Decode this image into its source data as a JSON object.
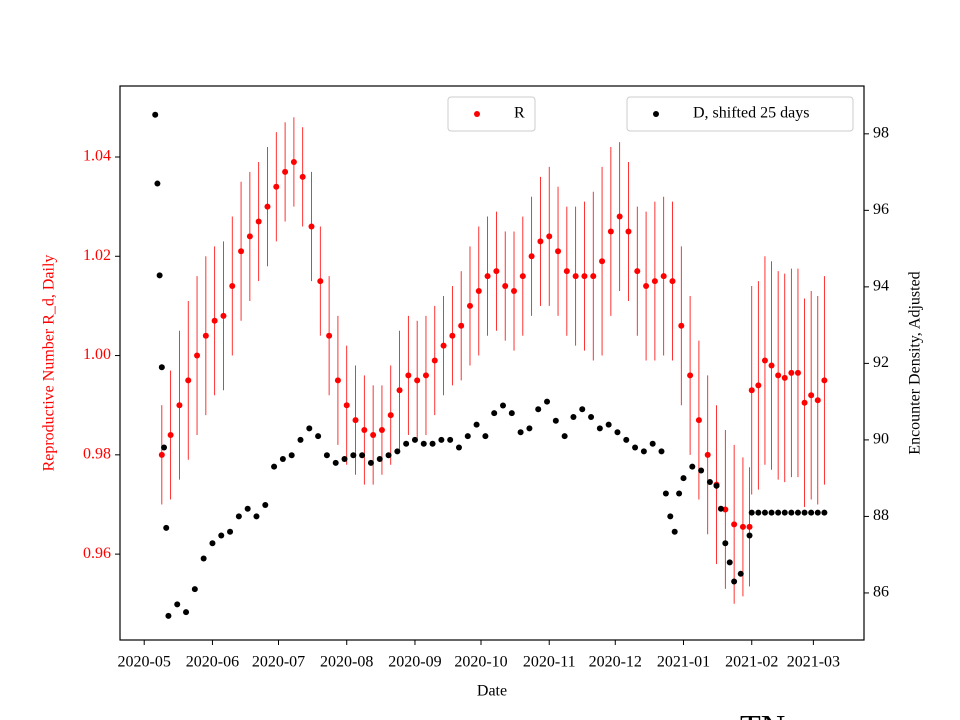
{
  "chart_data": {
    "type": "scatter",
    "xlabel": "Date",
    "ylabel": "Reproductive Number R_d, Daily",
    "y2label": "Encounter Density, Adjusted",
    "annotation": "TN",
    "xlim": [
      "2020-04-20",
      "2021-03-24"
    ],
    "xticks": [
      {
        "value": "2020-05-01",
        "label": "2020-05"
      },
      {
        "value": "2020-06-01",
        "label": "2020-06"
      },
      {
        "value": "2020-07-01",
        "label": "2020-07"
      },
      {
        "value": "2020-08-01",
        "label": "2020-08"
      },
      {
        "value": "2020-09-01",
        "label": "2020-09"
      },
      {
        "value": "2020-10-01",
        "label": "2020-10"
      },
      {
        "value": "2020-11-01",
        "label": "2020-11"
      },
      {
        "value": "2020-12-01",
        "label": "2020-12"
      },
      {
        "value": "2021-01-01",
        "label": "2021-01"
      },
      {
        "value": "2021-02-01",
        "label": "2021-02"
      },
      {
        "value": "2021-03-01",
        "label": "2021-03"
      }
    ],
    "ylim": [
      0.9427,
      1.0543
    ],
    "yticks": [
      {
        "value": 0.96,
        "label": "0.96"
      },
      {
        "value": 0.98,
        "label": "0.98"
      },
      {
        "value": 1.0,
        "label": "1.00"
      },
      {
        "value": 1.02,
        "label": "1.02"
      },
      {
        "value": 1.04,
        "label": "1.04"
      }
    ],
    "y2lim": [
      84.77,
      99.25
    ],
    "y2ticks": [
      86,
      88,
      90,
      92,
      94,
      96,
      98
    ],
    "series": [
      {
        "name": "R",
        "color": "#ff0000",
        "axis": "y",
        "legend": "upper center",
        "x": [
          "2020-05-09",
          "2020-05-13",
          "2020-05-17",
          "2020-05-21",
          "2020-05-25",
          "2020-05-29",
          "2020-06-02",
          "2020-06-06",
          "2020-06-10",
          "2020-06-14",
          "2020-06-18",
          "2020-06-22",
          "2020-06-26",
          "2020-06-30",
          "2020-07-04",
          "2020-07-08",
          "2020-07-12",
          "2020-07-16",
          "2020-07-20",
          "2020-07-24",
          "2020-07-28",
          "2020-08-01",
          "2020-08-05",
          "2020-08-09",
          "2020-08-13",
          "2020-08-17",
          "2020-08-21",
          "2020-08-25",
          "2020-08-29",
          "2020-09-02",
          "2020-09-06",
          "2020-09-10",
          "2020-09-14",
          "2020-09-18",
          "2020-09-22",
          "2020-09-26",
          "2020-09-30",
          "2020-10-04",
          "2020-10-08",
          "2020-10-12",
          "2020-10-16",
          "2020-10-20",
          "2020-10-24",
          "2020-10-28",
          "2020-11-01",
          "2020-11-05",
          "2020-11-09",
          "2020-11-13",
          "2020-11-17",
          "2020-11-21",
          "2020-11-25",
          "2020-11-29",
          "2020-12-03",
          "2020-12-07",
          "2020-12-11",
          "2020-12-15",
          "2020-12-19",
          "2020-12-23",
          "2020-12-27",
          "2020-12-31",
          "2021-01-04",
          "2021-01-08",
          "2021-01-12",
          "2021-01-16",
          "2021-01-20",
          "2021-01-24",
          "2021-01-28",
          "2021-01-31",
          "2021-02-01",
          "2021-02-04",
          "2021-02-07",
          "2021-02-10",
          "2021-02-13",
          "2021-02-16",
          "2021-02-19",
          "2021-02-22",
          "2021-02-25",
          "2021-02-28",
          "2021-03-03",
          "2021-03-06"
        ],
        "values": [
          0.98,
          0.984,
          0.99,
          0.995,
          1.0,
          1.004,
          1.007,
          1.008,
          1.014,
          1.021,
          1.024,
          1.027,
          1.03,
          1.034,
          1.037,
          1.039,
          1.036,
          1.026,
          1.015,
          1.004,
          0.995,
          0.99,
          0.987,
          0.985,
          0.984,
          0.985,
          0.988,
          0.993,
          0.996,
          0.995,
          0.996,
          0.999,
          1.002,
          1.004,
          1.006,
          1.01,
          1.013,
          1.016,
          1.017,
          1.014,
          1.013,
          1.016,
          1.02,
          1.023,
          1.024,
          1.021,
          1.017,
          1.016,
          1.016,
          1.016,
          1.019,
          1.025,
          1.028,
          1.025,
          1.017,
          1.014,
          1.015,
          1.016,
          1.015,
          1.006,
          0.996,
          0.987,
          0.98,
          0.974,
          0.969,
          0.966,
          0.9655,
          0.9655,
          0.993,
          0.994,
          0.999,
          0.998,
          0.996,
          0.9955,
          0.9965,
          0.9965,
          0.9905,
          0.992,
          0.991,
          0.995
        ],
        "errors": [
          0.01,
          0.013,
          0.015,
          0.016,
          0.016,
          0.016,
          0.015,
          0.015,
          0.014,
          0.014,
          0.013,
          0.012,
          0.012,
          0.011,
          0.01,
          0.009,
          0.01,
          0.011,
          0.011,
          0.012,
          0.013,
          0.012,
          0.011,
          0.011,
          0.01,
          0.009,
          0.01,
          0.012,
          0.012,
          0.012,
          0.012,
          0.011,
          0.01,
          0.01,
          0.011,
          0.012,
          0.013,
          0.012,
          0.012,
          0.011,
          0.012,
          0.012,
          0.012,
          0.013,
          0.014,
          0.013,
          0.013,
          0.014,
          0.015,
          0.017,
          0.019,
          0.017,
          0.015,
          0.014,
          0.013,
          0.015,
          0.016,
          0.016,
          0.016,
          0.016,
          0.016,
          0.016,
          0.016,
          0.016,
          0.016,
          0.016,
          0.014,
          0.012,
          0.021,
          0.021,
          0.021,
          0.021,
          0.021,
          0.021,
          0.021,
          0.021,
          0.021,
          0.021,
          0.021,
          0.021
        ]
      },
      {
        "name": "D, shifted 25 days",
        "color": "#000000",
        "axis": "y2",
        "legend": "upper right",
        "x": [
          "2020-05-06",
          "2020-05-07",
          "2020-05-08",
          "2020-05-09",
          "2020-05-10",
          "2020-05-11",
          "2020-05-12",
          "2020-05-16",
          "2020-05-20",
          "2020-05-24",
          "2020-05-28",
          "2020-06-01",
          "2020-06-05",
          "2020-06-09",
          "2020-06-13",
          "2020-06-17",
          "2020-06-21",
          "2020-06-25",
          "2020-06-29",
          "2020-07-03",
          "2020-07-07",
          "2020-07-11",
          "2020-07-15",
          "2020-07-19",
          "2020-07-23",
          "2020-07-27",
          "2020-07-31",
          "2020-08-04",
          "2020-08-08",
          "2020-08-12",
          "2020-08-16",
          "2020-08-20",
          "2020-08-24",
          "2020-08-28",
          "2020-09-01",
          "2020-09-05",
          "2020-09-09",
          "2020-09-13",
          "2020-09-17",
          "2020-09-21",
          "2020-09-25",
          "2020-09-29",
          "2020-10-03",
          "2020-10-07",
          "2020-10-11",
          "2020-10-15",
          "2020-10-19",
          "2020-10-23",
          "2020-10-27",
          "2020-10-31",
          "2020-11-04",
          "2020-11-08",
          "2020-11-12",
          "2020-11-16",
          "2020-11-20",
          "2020-11-24",
          "2020-11-28",
          "2020-12-02",
          "2020-12-06",
          "2020-12-10",
          "2020-12-14",
          "2020-12-18",
          "2020-12-22",
          "2020-12-24",
          "2020-12-26",
          "2020-12-28",
          "2020-12-30",
          "2021-01-01",
          "2021-01-05",
          "2021-01-09",
          "2021-01-13",
          "2021-01-16",
          "2021-01-18",
          "2021-01-20",
          "2021-01-22",
          "2021-01-24",
          "2021-01-27",
          "2021-01-31",
          "2021-02-01",
          "2021-02-04",
          "2021-02-07",
          "2021-02-10",
          "2021-02-13",
          "2021-02-16",
          "2021-02-19",
          "2021-02-22",
          "2021-02-25",
          "2021-02-28",
          "2021-03-03",
          "2021-03-06"
        ],
        "values": [
          98.5,
          96.7,
          94.3,
          91.9,
          89.8,
          87.7,
          85.4,
          85.7,
          85.5,
          86.1,
          86.9,
          87.3,
          87.5,
          87.6,
          88.0,
          88.2,
          88.0,
          88.3,
          89.3,
          89.5,
          89.6,
          90.0,
          90.3,
          90.1,
          89.6,
          89.4,
          89.5,
          89.6,
          89.6,
          89.4,
          89.5,
          89.6,
          89.7,
          89.9,
          90.0,
          89.9,
          89.9,
          90.0,
          90.0,
          89.8,
          90.1,
          90.4,
          90.1,
          90.7,
          90.9,
          90.7,
          90.2,
          90.3,
          90.8,
          91.0,
          90.5,
          90.1,
          90.6,
          90.8,
          90.6,
          90.3,
          90.4,
          90.2,
          90.0,
          89.8,
          89.7,
          89.9,
          89.7,
          88.6,
          88.0,
          87.6,
          88.6,
          89.0,
          89.3,
          89.2,
          88.9,
          88.8,
          88.2,
          87.3,
          86.8,
          86.3,
          86.5,
          87.5,
          88.1,
          88.1,
          88.1,
          88.1,
          88.1,
          88.1,
          88.1,
          88.1,
          88.1,
          88.1,
          88.1,
          88.1
        ]
      }
    ]
  }
}
